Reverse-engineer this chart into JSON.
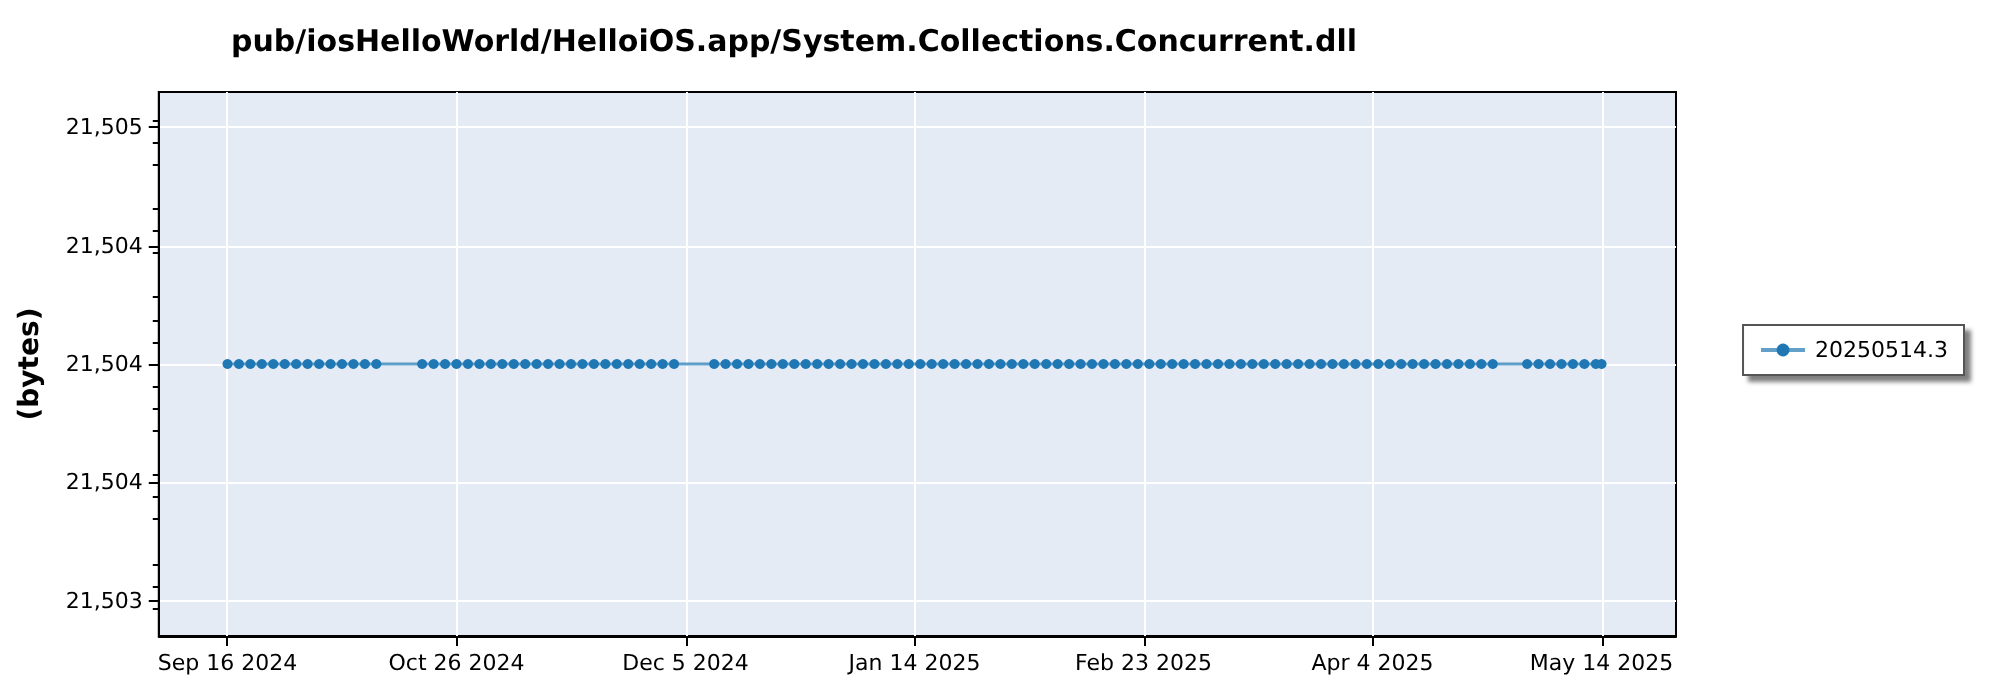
{
  "chart_data": {
    "type": "line",
    "title": "pub/iosHelloWorld/HelloiOS.app/System.Collections.Concurrent.dll",
    "ylabel": "(bytes)",
    "x": [
      "2024-09-16",
      "2024-09-18",
      "2024-09-20",
      "2024-09-22",
      "2024-09-24",
      "2024-09-26",
      "2024-09-28",
      "2024-09-30",
      "2024-10-02",
      "2024-10-04",
      "2024-10-06",
      "2024-10-08",
      "2024-10-10",
      "2024-10-12",
      "2024-10-20",
      "2024-10-22",
      "2024-10-24",
      "2024-10-26",
      "2024-10-28",
      "2024-10-30",
      "2024-11-01",
      "2024-11-03",
      "2024-11-05",
      "2024-11-07",
      "2024-11-09",
      "2024-11-11",
      "2024-11-13",
      "2024-11-15",
      "2024-11-17",
      "2024-11-19",
      "2024-11-21",
      "2024-11-23",
      "2024-11-25",
      "2024-11-27",
      "2024-11-29",
      "2024-12-01",
      "2024-12-03",
      "2024-12-10",
      "2024-12-12",
      "2024-12-14",
      "2024-12-16",
      "2024-12-18",
      "2024-12-20",
      "2024-12-22",
      "2024-12-24",
      "2024-12-26",
      "2024-12-28",
      "2024-12-30",
      "2025-01-01",
      "2025-01-03",
      "2025-01-05",
      "2025-01-07",
      "2025-01-09",
      "2025-01-11",
      "2025-01-13",
      "2025-01-15",
      "2025-01-17",
      "2025-01-19",
      "2025-01-21",
      "2025-01-23",
      "2025-01-25",
      "2025-01-27",
      "2025-01-29",
      "2025-01-31",
      "2025-02-02",
      "2025-02-04",
      "2025-02-06",
      "2025-02-08",
      "2025-02-10",
      "2025-02-12",
      "2025-02-14",
      "2025-02-16",
      "2025-02-18",
      "2025-02-20",
      "2025-02-22",
      "2025-02-24",
      "2025-02-26",
      "2025-02-28",
      "2025-03-02",
      "2025-03-04",
      "2025-03-06",
      "2025-03-08",
      "2025-03-10",
      "2025-03-12",
      "2025-03-14",
      "2025-03-16",
      "2025-03-18",
      "2025-03-20",
      "2025-03-22",
      "2025-03-24",
      "2025-03-26",
      "2025-03-28",
      "2025-03-30",
      "2025-04-01",
      "2025-04-03",
      "2025-04-05",
      "2025-04-07",
      "2025-04-09",
      "2025-04-11",
      "2025-04-13",
      "2025-04-15",
      "2025-04-17",
      "2025-04-19",
      "2025-04-21",
      "2025-04-23",
      "2025-04-25",
      "2025-05-01",
      "2025-05-03",
      "2025-05-05",
      "2025-05-07",
      "2025-05-09",
      "2025-05-11",
      "2025-05-13",
      "2025-05-14"
    ],
    "series": [
      {
        "name": "20250514.3",
        "color": "#1f77b4",
        "values": [
          21504,
          21504,
          21504,
          21504,
          21504,
          21504,
          21504,
          21504,
          21504,
          21504,
          21504,
          21504,
          21504,
          21504,
          21504,
          21504,
          21504,
          21504,
          21504,
          21504,
          21504,
          21504,
          21504,
          21504,
          21504,
          21504,
          21504,
          21504,
          21504,
          21504,
          21504,
          21504,
          21504,
          21504,
          21504,
          21504,
          21504,
          21504,
          21504,
          21504,
          21504,
          21504,
          21504,
          21504,
          21504,
          21504,
          21504,
          21504,
          21504,
          21504,
          21504,
          21504,
          21504,
          21504,
          21504,
          21504,
          21504,
          21504,
          21504,
          21504,
          21504,
          21504,
          21504,
          21504,
          21504,
          21504,
          21504,
          21504,
          21504,
          21504,
          21504,
          21504,
          21504,
          21504,
          21504,
          21504,
          21504,
          21504,
          21504,
          21504,
          21504,
          21504,
          21504,
          21504,
          21504,
          21504,
          21504,
          21504,
          21504,
          21504,
          21504,
          21504,
          21504,
          21504,
          21504,
          21504,
          21504,
          21504,
          21504,
          21504,
          21504,
          21504,
          21504,
          21504,
          21504,
          21504,
          21504,
          21504,
          21504,
          21504,
          21504,
          21504,
          21504,
          21504
        ]
      }
    ],
    "xlim": [
      "2024-09-04",
      "2025-05-27"
    ],
    "xticks": [
      {
        "value": "2024-09-16",
        "label": "Sep 16 2024"
      },
      {
        "value": "2024-10-26",
        "label": "Oct 26 2024"
      },
      {
        "value": "2024-12-05",
        "label": "Dec 5 2024"
      },
      {
        "value": "2025-01-14",
        "label": "Jan 14 2025"
      },
      {
        "value": "2025-02-23",
        "label": "Feb 23 2025"
      },
      {
        "value": "2025-04-04",
        "label": "Apr 4 2025"
      },
      {
        "value": "2025-05-14",
        "label": "May 14 2025"
      }
    ],
    "ylim": [
      21503.08,
      21504.92
    ],
    "yticks": [
      {
        "value": 21503.2,
        "label": "21,503"
      },
      {
        "value": 21503.6,
        "label": "21,504"
      },
      {
        "value": 21504,
        "label": "21,504"
      },
      {
        "value": 21504.4,
        "label": "21,504"
      },
      {
        "value": 21504.8,
        "label": "21,505"
      }
    ],
    "grid": true,
    "legend": "right",
    "marker": "circle",
    "line_style": "solid"
  }
}
